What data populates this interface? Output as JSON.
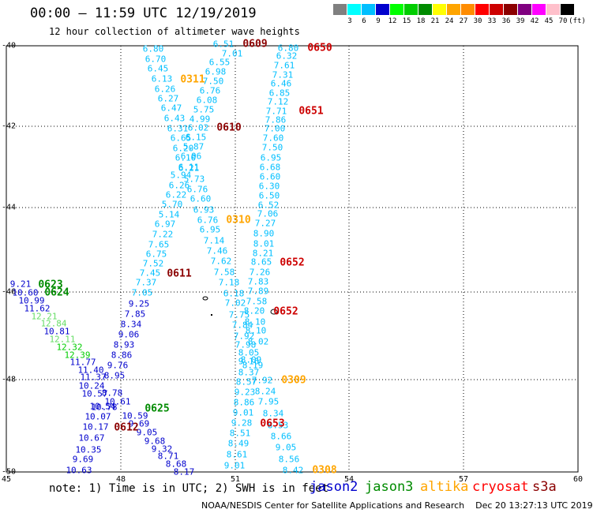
{
  "title": "00:00 – 11:59 UTC 12/19/2019",
  "subtitle": "12 hour collection of altimeter wave heights",
  "scale": {
    "colors": [
      "#808080",
      "#00ffff",
      "#00bfff",
      "#0000cd",
      "#00ff00",
      "#00cd00",
      "#008b00",
      "#ffff00",
      "#ffa500",
      "#ff8c00",
      "#ff0000",
      "#cd0000",
      "#8b0000",
      "#800080",
      "#ff00ff",
      "#ffc0cb",
      "#000000"
    ],
    "labels": [
      "3",
      "6",
      "9",
      "12",
      "15",
      "18",
      "21",
      "24",
      "27",
      "30",
      "33",
      "36",
      "39",
      "42",
      "45",
      "70",
      "(ft)"
    ]
  },
  "axes": {
    "lat_labels": [
      "-40",
      "-42",
      "-44",
      "-46",
      "-48",
      "-50"
    ],
    "lon_labels": [
      "45",
      "48",
      "51",
      "54",
      "57",
      "60"
    ]
  },
  "passes": [
    {
      "label": "0609",
      "color": "#8b0000"
    },
    {
      "label": "0650",
      "color": "#cd0000"
    },
    {
      "label": "0311",
      "color": "#ffa500"
    },
    {
      "label": "0651",
      "color": "#cd0000"
    },
    {
      "label": "0610",
      "color": "#8b0000"
    },
    {
      "label": "0310",
      "color": "#ffa500"
    },
    {
      "label": "0652",
      "color": "#cd0000"
    },
    {
      "label": "0611",
      "color": "#8b0000"
    },
    {
      "label": "0623",
      "color": "#008b00"
    },
    {
      "label": "0624",
      "color": "#008b00"
    },
    {
      "label": "0652",
      "color": "#cd0000"
    },
    {
      "label": "0309",
      "color": "#ffa500"
    },
    {
      "label": "0625",
      "color": "#008b00"
    },
    {
      "label": "0612",
      "color": "#8b0000"
    },
    {
      "label": "0653",
      "color": "#cd0000"
    },
    {
      "label": "0308",
      "color": "#ffa500"
    }
  ],
  "track_a": [
    "6.51",
    "7.01",
    "6.55",
    "6.98",
    "7.50",
    "6.76",
    "6.08",
    "5.75",
    "4.99",
    "6.02",
    "6.15",
    "5.87",
    "6.06",
    "6.11",
    "5.73",
    "6.76",
    "6.60",
    "6.93",
    "6.76",
    "6.95",
    "7.14",
    "7.46",
    "7.62",
    "7.58",
    "7.18",
    "6.18",
    "7.02",
    "7.75",
    "7.84",
    "7.92",
    "7.98",
    "8.05",
    "8.09",
    "8.19",
    "9.16",
    "8.37",
    "8.57",
    "9.23",
    "8.86",
    "9.01",
    "9.28",
    "8.51",
    "8.49",
    "8.61",
    "9.01"
  ],
  "track_b": [
    "6.80",
    "6.70",
    "6.45",
    "6.13",
    "6.26",
    "6.27",
    "6.47",
    "6.43",
    "6.31",
    "6.65",
    "6.20",
    "6.10",
    "6.21",
    "5.94",
    "6.26",
    "6.22",
    "5.70",
    "5.14",
    "6.97",
    "7.22",
    "7.65",
    "6.75",
    "7.52",
    "7.45",
    "7.37",
    "7.05"
  ],
  "track_c": [
    "6.80",
    "6.32",
    "7.61",
    "7.31",
    "6.46",
    "6.85",
    "7.12",
    "7.71",
    "7.86",
    "7.00",
    "7.60",
    "7.50",
    "6.95",
    "6.68",
    "6.60",
    "6.30",
    "6.50",
    "6.52",
    "7.06",
    "7.27",
    "8.90",
    "8.01",
    "8.21",
    "8.65",
    "7.26",
    "7.83",
    "7.89",
    "7.58",
    "8.20",
    "8.10",
    "8.10",
    "8.02",
    "7.92",
    "8.24",
    "7.95",
    "8.34",
    "8.53",
    "8.66",
    "9.05",
    "8.56",
    "8.42"
  ],
  "track_d": [
    "9.25",
    "7.85",
    "8.34",
    "9.06",
    "8.93",
    "8.86",
    "9.76",
    "8.95",
    "8.78",
    "10.61",
    "10.59",
    "9.69",
    "9.05",
    "9.68",
    "9.32",
    "8.71",
    "8.68",
    "8.17"
  ],
  "track_e": [
    "9.21",
    "10.60",
    "10.99",
    "11.62",
    "10.81",
    "11.77",
    "11.40",
    "11.37",
    "10.24",
    "10.57",
    "10.54",
    "10.78",
    "10.07",
    "10.17",
    "10.67",
    "10.35",
    "9.69",
    "10.63"
  ],
  "track_f": [
    "12.21",
    "12.84",
    "12.11",
    "12.32",
    "12.39"
  ],
  "note": "note:  1)  Time is in UTC;  2)  SWH is in feet",
  "satellites": [
    {
      "name": "jason2",
      "color": "#0000cd"
    },
    {
      "name": "jason3",
      "color": "#008b00"
    },
    {
      "name": "altika",
      "color": "#ffa500"
    },
    {
      "name": "cryosat",
      "color": "#ff0000"
    },
    {
      "name": "s3a",
      "color": "#8b0000"
    }
  ],
  "credit": "NOAA/NESDIS Center for Satellite Applications and Research    Dec 20 13:27:13 UTC 2019"
}
